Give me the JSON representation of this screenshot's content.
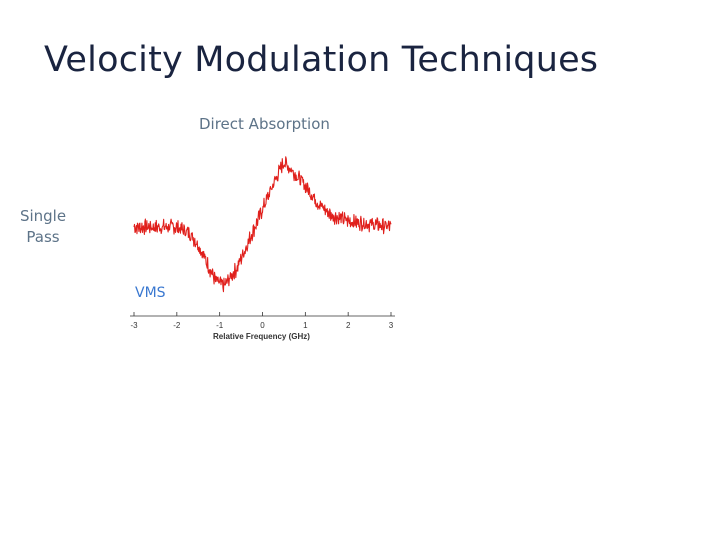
{
  "slide": {
    "title": "Velocity Modulation Techniques"
  },
  "figure": {
    "column_header": "Direct Absorption",
    "row_label": "Single Pass",
    "subplot_label": "VMS"
  },
  "chart_data": {
    "type": "line",
    "xlabel": "Relative Frequency (GHz)",
    "ylabel": "",
    "xlim": [
      -3,
      3
    ],
    "x_ticks": [
      -3,
      -2,
      -1,
      0,
      1,
      2,
      3
    ],
    "ylim": [
      -1.2,
      1.3
    ],
    "series": [
      {
        "color": "#e0201c",
        "x": [
          -3.0,
          -2.5,
          -2.0,
          -1.7,
          -1.5,
          -1.3,
          -1.1,
          -0.9,
          -0.6,
          -0.3,
          0.0,
          0.3,
          0.5,
          0.7,
          1.0,
          1.3,
          1.6,
          2.0,
          2.5,
          3.0
        ],
        "y": [
          0.0,
          0.0,
          0.0,
          -0.1,
          -0.3,
          -0.6,
          -0.9,
          -1.0,
          -0.7,
          -0.2,
          0.3,
          0.8,
          1.1,
          0.95,
          0.7,
          0.4,
          0.2,
          0.1,
          0.05,
          0.0
        ]
      }
    ]
  }
}
